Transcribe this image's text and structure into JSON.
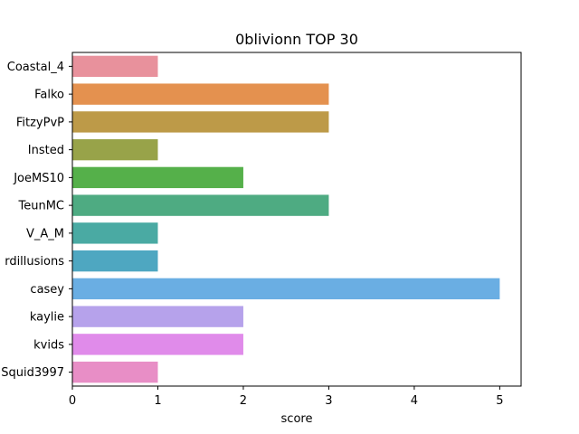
{
  "chart_data": {
    "type": "bar",
    "orientation": "horizontal",
    "title": "0bliviοnn TOP 30",
    "xlabel": "score",
    "ylabel": "",
    "xlim": [
      0,
      5.25
    ],
    "xticks": [
      "0",
      "1",
      "2",
      "3",
      "4",
      "5"
    ],
    "grid": false,
    "categories": [
      "Coastal_4",
      "Falko",
      "FitzyPvP",
      "Insted",
      "JoeMS10",
      "TeunMC",
      "V_A_M",
      "rdillusions",
      "casey",
      "kaylie",
      "kvids",
      "Squid3997"
    ],
    "values": [
      1,
      3,
      3,
      1,
      2,
      3,
      1,
      1,
      5,
      2,
      2,
      1
    ],
    "colors": [
      "#e8919c",
      "#e4914f",
      "#bd9a48",
      "#98a349",
      "#55b04a",
      "#4eab82",
      "#4aaaa3",
      "#4ea7c1",
      "#6aaee3",
      "#b6a2eb",
      "#e08bea",
      "#e88ec6"
    ]
  }
}
